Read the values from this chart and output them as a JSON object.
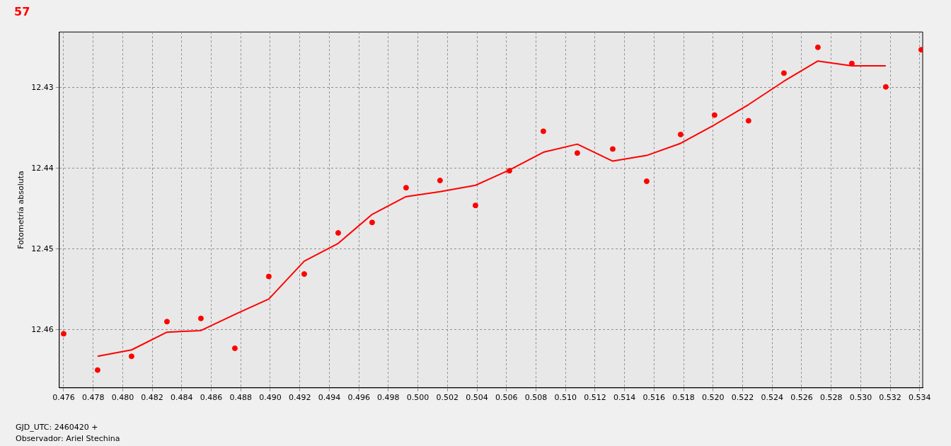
{
  "chart_data": {
    "type": "scatter",
    "title": "57",
    "ylabel": "Fotometría absoluta",
    "annotations": [
      "GJD_UTC: 2460420 +",
      "Observador: Ariel Stechina"
    ],
    "xlim": [
      0.4757,
      0.5342
    ],
    "ylim": [
      12.4672,
      12.4231
    ],
    "xticks": [
      0.476,
      0.478,
      {
        "value": 0.48,
        "label": "0.480"
      },
      0.482,
      0.484,
      0.486,
      0.488,
      {
        "value": 0.49,
        "label": "0.490"
      },
      0.492,
      0.494,
      0.496,
      0.498,
      {
        "value": 0.5,
        "label": "0.500"
      },
      0.502,
      0.504,
      0.506,
      0.508,
      {
        "value": 0.51,
        "label": "0.510"
      },
      0.512,
      0.514,
      0.516,
      0.518,
      {
        "value": 0.52,
        "label": "0.520"
      },
      0.522,
      0.524,
      0.526,
      0.528,
      {
        "value": 0.53,
        "label": "0.530"
      },
      0.532,
      0.534
    ],
    "yticks": [
      12.43,
      12.44,
      12.45,
      12.46
    ],
    "grid": true,
    "legend": false,
    "series": [
      {
        "marker": "circle",
        "color": "#ff0000",
        "x": [
          0.476,
          0.4783,
          0.4806,
          0.483,
          0.4853,
          0.4876,
          0.4899,
          0.4923,
          0.4946,
          0.4969,
          0.4992,
          0.5015,
          0.5039,
          0.5062,
          0.5085,
          0.5108,
          0.5132,
          0.5155,
          0.5178,
          0.5201,
          0.5224,
          0.5248,
          0.5271,
          0.5294,
          0.5317,
          0.5341
        ],
        "values": [
          12.4605,
          12.465,
          12.4633,
          12.459,
          12.4586,
          12.4623,
          12.4534,
          12.4531,
          12.448,
          12.4467,
          12.4424,
          12.4415,
          12.4446,
          12.4403,
          12.4354,
          12.4381,
          12.4376,
          12.4416,
          12.4358,
          12.4334,
          12.4341,
          12.4282,
          12.425,
          12.427,
          12.4299,
          12.4253
        ]
      },
      {
        "type": "line",
        "marker": "none",
        "line_style": "solid",
        "color": "#ff0000",
        "x": [
          0.4783,
          0.4806,
          0.483,
          0.4853,
          0.4876,
          0.4899,
          0.4923,
          0.4946,
          0.4969,
          0.4992,
          0.5015,
          0.5039,
          0.5062,
          0.5085,
          0.5108,
          0.5132,
          0.5155,
          0.5178,
          0.5201,
          0.5224,
          0.5248,
          0.5271,
          0.5294,
          0.5317
        ],
        "values": [
          12.4633,
          12.4625,
          12.4603,
          12.4601,
          12.4581,
          12.4562,
          12.4515,
          12.4493,
          12.4457,
          12.4435,
          12.4429,
          12.4421,
          12.4402,
          12.438,
          12.437,
          12.4391,
          12.4384,
          12.4369,
          12.4346,
          12.4321,
          12.4292,
          12.4267,
          12.4273,
          12.4273
        ]
      }
    ]
  }
}
